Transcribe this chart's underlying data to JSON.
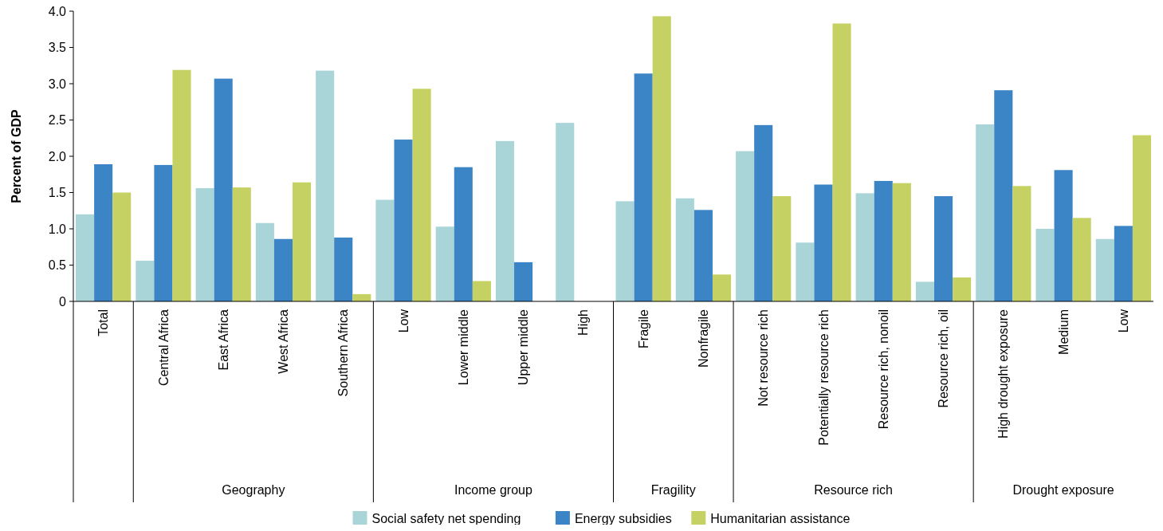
{
  "chart_data": {
    "type": "bar",
    "ylabel": "Percent of GDP",
    "categories": [
      "Total",
      "Central Africa",
      "East Africa",
      "West Africa",
      "Southern Africa",
      "Low",
      "Lower middle",
      "Upper middle",
      "High",
      "Fragile",
      "Nonfragile",
      "Not resource rich",
      "Potentially resource rich",
      "Resource rich, nonoil",
      "Resource rich, oil",
      "High drought exposure",
      "Medium",
      "Low"
    ],
    "series": [
      {
        "name": "Social safety net spending",
        "color": "#a9d5d9",
        "values": [
          1.2,
          0.56,
          1.56,
          1.08,
          3.18,
          1.4,
          1.03,
          2.21,
          2.46,
          1.38,
          1.42,
          2.07,
          0.81,
          1.49,
          0.27,
          2.44,
          1.0,
          0.86
        ]
      },
      {
        "name": "Energy subsidies",
        "color": "#3b84c6",
        "values": [
          1.89,
          1.88,
          3.07,
          0.86,
          0.88,
          2.23,
          1.85,
          0.54,
          null,
          3.14,
          1.26,
          2.43,
          1.61,
          1.66,
          1.45,
          2.91,
          1.81,
          1.04
        ]
      },
      {
        "name": "Humanitarian assistance",
        "color": "#c6d163",
        "values": [
          1.5,
          3.19,
          1.57,
          1.64,
          0.1,
          2.93,
          0.28,
          null,
          null,
          3.93,
          0.37,
          1.45,
          3.83,
          1.63,
          0.33,
          1.59,
          1.15,
          2.29
        ]
      }
    ],
    "ylim": [
      0,
      4
    ],
    "yticks": [
      0,
      0.5,
      {
        "value": 1,
        "label": "1.0"
      },
      1.5,
      {
        "value": 2,
        "label": "2.0"
      },
      2.5,
      {
        "value": 3,
        "label": "3.0"
      },
      3.5,
      {
        "value": 4,
        "label": "4.0"
      }
    ],
    "annotations": [
      "Geography",
      "Income group",
      "Fragility",
      "Resource rich",
      "Drought exposure"
    ],
    "legend": "bottom",
    "grid": false
  }
}
